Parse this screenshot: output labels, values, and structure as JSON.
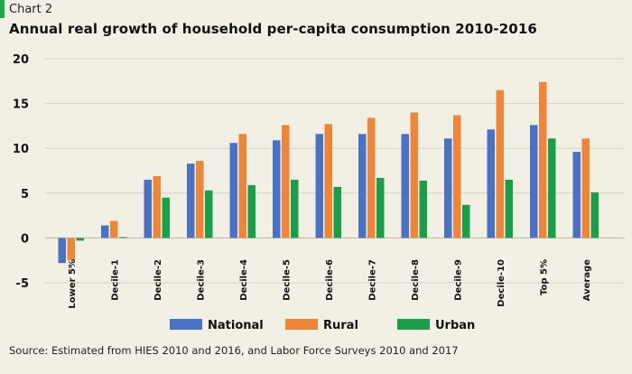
{
  "header": {
    "chart_number": "Chart 2",
    "title": "Annual real growth of household per-capita consumption 2010-2016"
  },
  "source": "Source: Estimated from HIES 2010 and 2016, and Labor Force Surveys 2010 and 2017",
  "colors": {
    "background": "#f2f0e4",
    "accent": "#1fa84a",
    "grid": "#d4d1c2"
  },
  "chart_data": {
    "type": "bar",
    "title": "Annual real growth of household per-capita consumption 2010-2016",
    "xlabel": "",
    "ylabel": "",
    "ylim": [
      -5,
      20
    ],
    "yticks": [
      -5,
      0,
      5,
      10,
      15,
      20
    ],
    "grid": true,
    "legend_position": "bottom-center",
    "categories": [
      "Lower 5%",
      "Decile-1",
      "Decile-2",
      "Decile-3",
      "Decile-4",
      "Decile-5",
      "Decile-6",
      "Decile-7",
      "Decile-8",
      "Decile-9",
      "Decile-10",
      "Top 5%",
      "Average"
    ],
    "series": [
      {
        "name": "National",
        "color": "#4a72c4",
        "values": [
          -2.8,
          1.4,
          6.5,
          8.3,
          10.6,
          10.9,
          11.6,
          11.6,
          11.6,
          11.1,
          12.1,
          12.6,
          9.6
        ]
      },
      {
        "name": "Rural",
        "color": "#ef8637",
        "values": [
          -2.5,
          1.9,
          6.9,
          8.6,
          11.6,
          12.6,
          12.7,
          13.4,
          14.0,
          13.7,
          16.5,
          17.4,
          11.1
        ]
      },
      {
        "name": "Urban",
        "color": "#1a9e49",
        "values": [
          -0.3,
          0.1,
          4.5,
          5.3,
          5.9,
          6.5,
          5.7,
          6.7,
          6.4,
          3.7,
          6.5,
          11.1,
          5.1
        ]
      }
    ]
  }
}
